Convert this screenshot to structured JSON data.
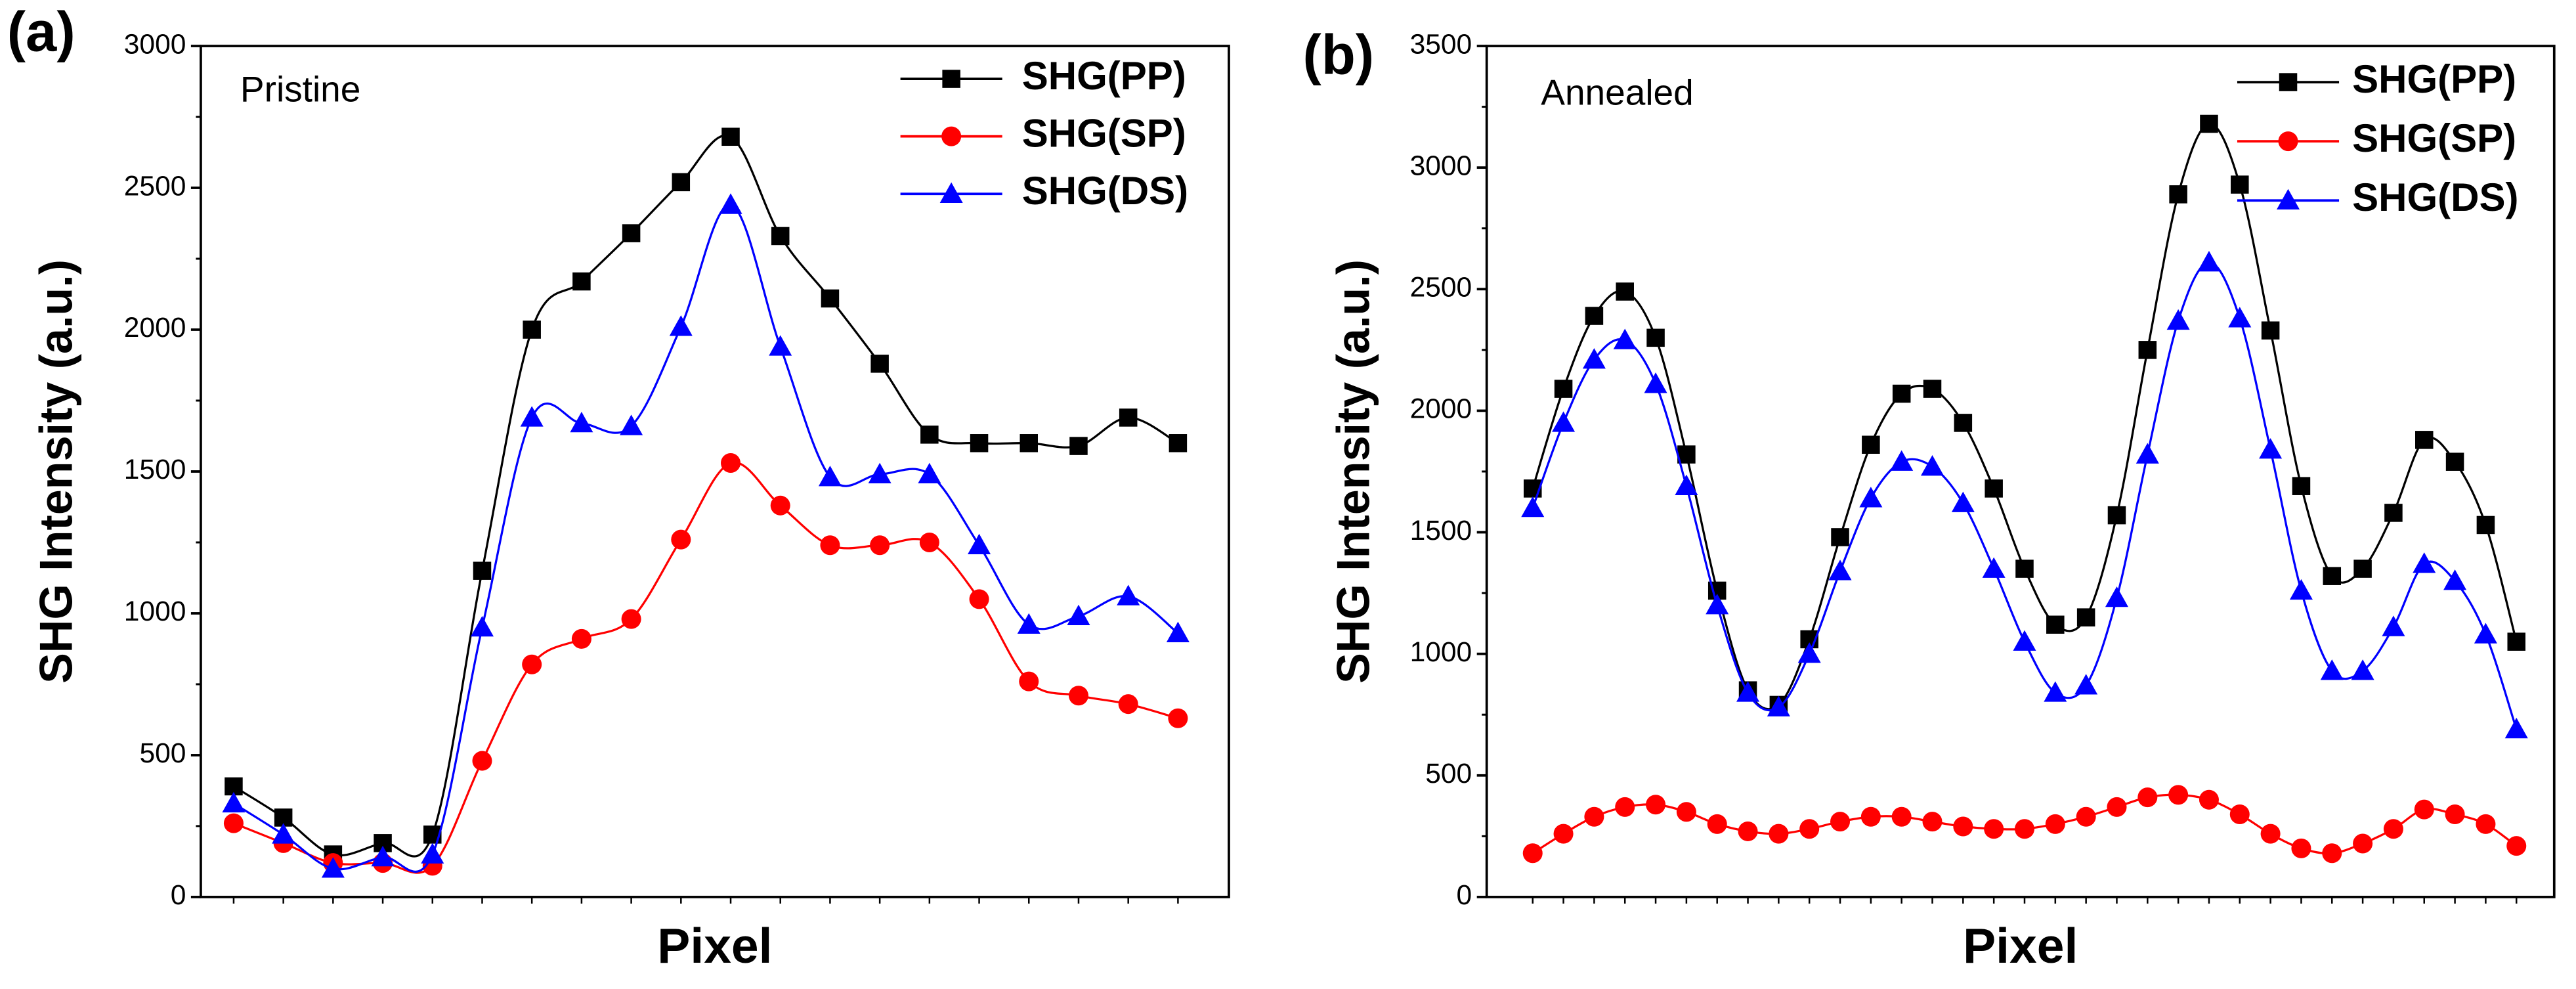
{
  "chart_data": [
    {
      "type": "line",
      "annotations": [
        "(a)",
        "Pristine"
      ],
      "ylabel": "SHG Intensity (a.u.)",
      "xlabel": "Pixel",
      "categories": [
        null,
        null,
        null,
        null,
        null,
        null,
        null,
        null,
        null,
        null,
        null,
        null,
        null,
        null,
        null,
        null,
        null,
        null,
        null,
        null
      ],
      "ylim": [
        0,
        3000
      ],
      "yticks": [
        0,
        500,
        1000,
        1500,
        2000,
        2500,
        3000
      ],
      "legend": "upper right",
      "series": [
        {
          "name": "SHG(PP)",
          "color": "#000000",
          "marker": "square",
          "values": [
            390,
            280,
            150,
            190,
            220,
            1150,
            2000,
            2170,
            2340,
            2520,
            2680,
            2330,
            2110,
            1880,
            1630,
            1600,
            1600,
            1590,
            1690,
            1600
          ]
        },
        {
          "name": "SHG(SP)",
          "color": "#ff0000",
          "marker": "circle",
          "values": [
            260,
            190,
            120,
            120,
            110,
            480,
            820,
            910,
            980,
            1260,
            1530,
            1380,
            1240,
            1240,
            1250,
            1050,
            760,
            710,
            680,
            630
          ]
        },
        {
          "name": "SHG(DS)",
          "color": "#0000ff",
          "marker": "triangle",
          "values": [
            330,
            220,
            100,
            140,
            150,
            950,
            1690,
            1670,
            1660,
            2010,
            2440,
            1940,
            1480,
            1490,
            1490,
            1240,
            960,
            990,
            1060,
            930
          ]
        }
      ]
    },
    {
      "type": "line",
      "annotations": [
        "(b)",
        "Annealed"
      ],
      "ylabel": "SHG Intensity (a.u.)",
      "xlabel": "Pixel",
      "categories": [
        null,
        null,
        null,
        null,
        null,
        null,
        null,
        null,
        null,
        null,
        null,
        null,
        null,
        null,
        null,
        null,
        null,
        null,
        null,
        null,
        null,
        null,
        null,
        null,
        null,
        null,
        null,
        null,
        null,
        null,
        null,
        null,
        null
      ],
      "ylim": [
        0,
        3500
      ],
      "yticks": [
        0,
        500,
        1000,
        1500,
        2000,
        2500,
        3000,
        3500
      ],
      "legend": "upper right",
      "series": [
        {
          "name": "SHG(PP)",
          "color": "#000000",
          "marker": "square",
          "values": [
            1680,
            2090,
            2390,
            2490,
            2300,
            1820,
            1260,
            850,
            790,
            1060,
            1480,
            1860,
            2070,
            2090,
            1950,
            1680,
            1350,
            1120,
            1150,
            1570,
            2250,
            2890,
            3180,
            2930,
            2330,
            1690,
            1320,
            1350,
            1580,
            1880,
            1790,
            1530,
            1050
          ]
        },
        {
          "name": "SHG(SP)",
          "color": "#ff0000",
          "marker": "circle",
          "values": [
            180,
            260,
            330,
            370,
            380,
            350,
            300,
            270,
            260,
            280,
            310,
            330,
            330,
            310,
            290,
            280,
            280,
            300,
            330,
            370,
            410,
            420,
            400,
            340,
            260,
            200,
            180,
            220,
            280,
            360,
            340,
            300,
            210
          ]
        },
        {
          "name": "SHG(DS)",
          "color": "#0000ff",
          "marker": "triangle",
          "values": [
            1600,
            1950,
            2210,
            2290,
            2110,
            1690,
            1200,
            840,
            780,
            1000,
            1340,
            1640,
            1790,
            1770,
            1620,
            1350,
            1050,
            840,
            870,
            1230,
            1820,
            2370,
            2610,
            2380,
            1840,
            1260,
            930,
            930,
            1110,
            1370,
            1300,
            1080,
            690
          ]
        }
      ]
    }
  ]
}
